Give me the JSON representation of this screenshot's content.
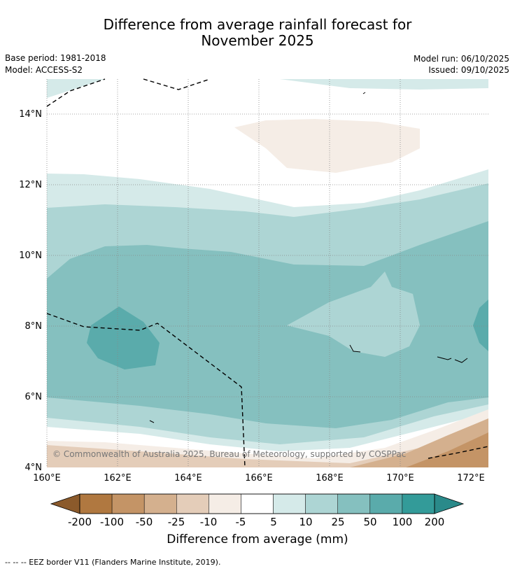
{
  "title": {
    "line1": "Difference from average rainfall forecast for",
    "line2": "November 2025"
  },
  "meta": {
    "base_period": "Base period: 1981-2018",
    "model": "Model: ACCESS-S2",
    "model_run": "Model run: 06/10/2025",
    "issued": "Issued: 09/10/2025"
  },
  "map": {
    "lat_labels": [
      "4°N",
      "6°N",
      "8°N",
      "10°N",
      "12°N",
      "14°N"
    ],
    "lon_labels": [
      "160°E",
      "162°E",
      "164°E",
      "166°E",
      "168°E",
      "170°E",
      "172°E"
    ],
    "copyright": "© Commonwealth of Australia 2025, Bureau of Meteorology, supported by COSPPac"
  },
  "colorbar": {
    "ticks": [
      "-200",
      "-100",
      "-50",
      "-25",
      "-10",
      "-5",
      "5",
      "10",
      "25",
      "50",
      "100",
      "200"
    ],
    "colors": {
      "extend_low": "#8b5a2b",
      "c1": "#b07840",
      "c2": "#c49466",
      "c3": "#d4b08e",
      "c4": "#e4cdb9",
      "c5": "#f5ede6",
      "c6": "#ffffff",
      "c7": "#d5eae9",
      "c8": "#add5d4",
      "c9": "#85c0bf",
      "c10": "#5aabab",
      "c11": "#339b99",
      "extend_high": "#2a8a8a"
    },
    "label": "Difference from average (mm)"
  },
  "footnote": "--  --  -- EEZ border V11 (Flanders Marine Institute, 2019)."
}
